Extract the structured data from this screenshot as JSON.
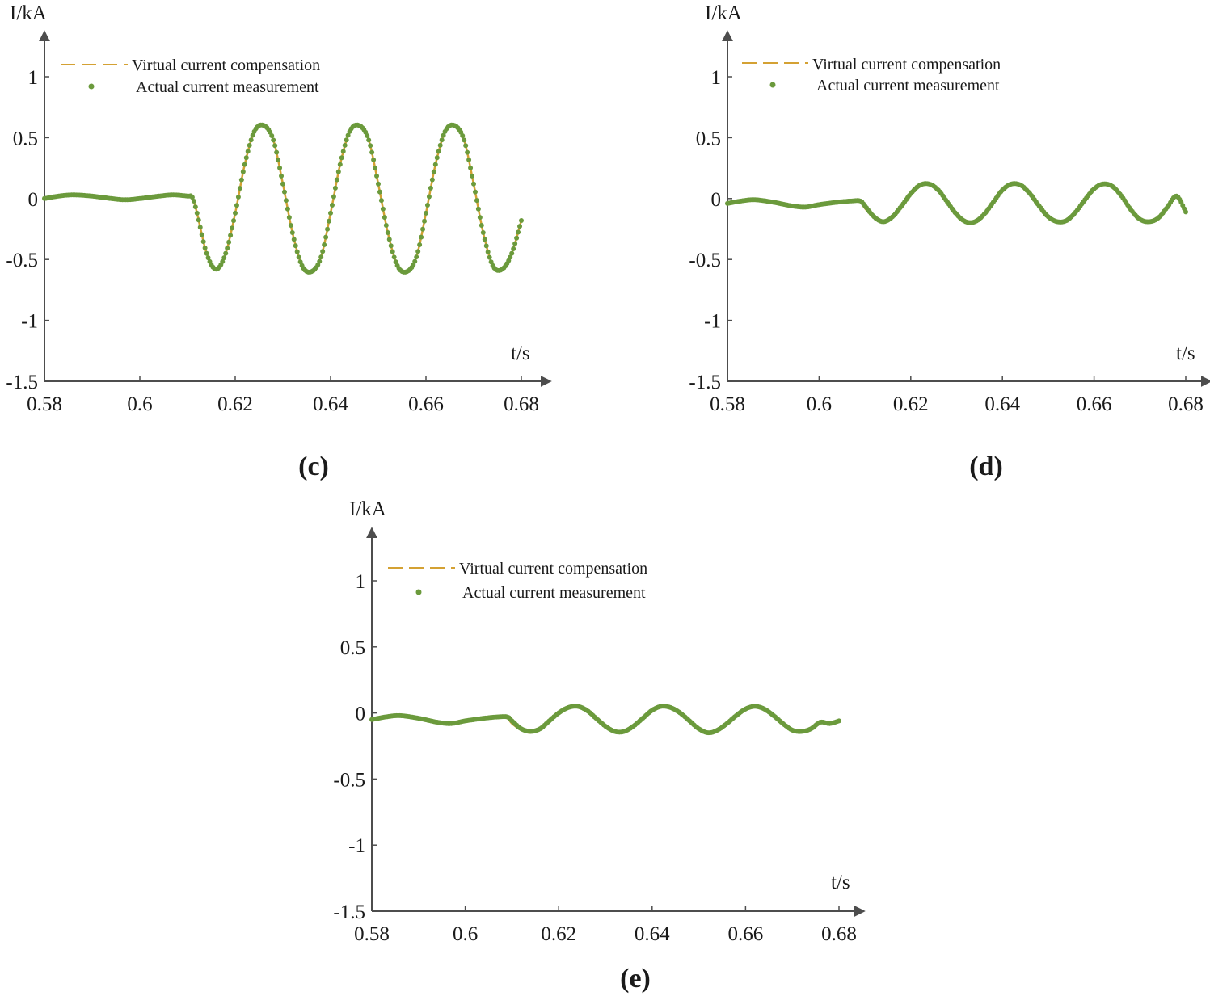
{
  "colors": {
    "virtual": "#d4a133",
    "actual": "#6b9a3c",
    "axis": "#4d4d4d"
  },
  "chart_data": [
    {
      "type": "line",
      "panel": "(c)",
      "ylabel": "I/kA",
      "xlabel": "t/s",
      "xlim": [
        0.58,
        0.68
      ],
      "ylim": [
        -1.5,
        1.25
      ],
      "xticks": [
        0.58,
        0.6,
        0.62,
        0.64,
        0.66,
        0.68
      ],
      "xtick_labels": [
        "0.58",
        "0.6",
        "0.62",
        "0.64",
        "0.66",
        "0.68"
      ],
      "yticks": [
        1,
        0.5,
        0,
        -0.5,
        -1,
        -1.5
      ],
      "ytick_labels": [
        "1",
        "0.5",
        "0",
        "-0.5",
        "-1",
        "-1.5"
      ],
      "legend": [
        "Virtual current compensation",
        "Actual current measurement"
      ],
      "legend_position": "top-left",
      "series": [
        {
          "name": "Virtual current compensation",
          "style": "dashed",
          "x": [
            0.58,
            0.583,
            0.586,
            0.59,
            0.594,
            0.597,
            0.6,
            0.604,
            0.607,
            0.61,
            0.611,
            0.612,
            0.614,
            0.616,
            0.618,
            0.62,
            0.622,
            0.624,
            0.626,
            0.628,
            0.63,
            0.632,
            0.634,
            0.636,
            0.638,
            0.64,
            0.642,
            0.644,
            0.646,
            0.648,
            0.65,
            0.652,
            0.654,
            0.656,
            0.658,
            0.66,
            0.662,
            0.664,
            0.666,
            0.668,
            0.67,
            0.672,
            0.674,
            0.676,
            0.678,
            0.68
          ],
          "y": [
            0.0,
            0.02,
            0.03,
            0.02,
            0.0,
            -0.01,
            0.0,
            0.02,
            0.03,
            0.02,
            0.01,
            -0.12,
            -0.45,
            -0.58,
            -0.45,
            -0.12,
            0.28,
            0.55,
            0.6,
            0.48,
            0.12,
            -0.28,
            -0.55,
            -0.6,
            -0.48,
            -0.12,
            0.28,
            0.55,
            0.6,
            0.48,
            0.12,
            -0.28,
            -0.55,
            -0.6,
            -0.48,
            -0.12,
            0.28,
            0.55,
            0.6,
            0.48,
            0.12,
            -0.28,
            -0.55,
            -0.58,
            -0.45,
            -0.18
          ]
        },
        {
          "name": "Actual current measurement",
          "style": "dots",
          "x": [
            0.58,
            0.583,
            0.586,
            0.59,
            0.594,
            0.597,
            0.6,
            0.604,
            0.607,
            0.61,
            0.611,
            0.612,
            0.614,
            0.616,
            0.618,
            0.62,
            0.622,
            0.624,
            0.626,
            0.628,
            0.63,
            0.632,
            0.634,
            0.636,
            0.638,
            0.64,
            0.642,
            0.644,
            0.646,
            0.648,
            0.65,
            0.652,
            0.654,
            0.656,
            0.658,
            0.66,
            0.662,
            0.664,
            0.666,
            0.668,
            0.67,
            0.672,
            0.674,
            0.676,
            0.678,
            0.68
          ],
          "y": [
            0.0,
            0.02,
            0.03,
            0.02,
            0.0,
            -0.01,
            0.0,
            0.02,
            0.03,
            0.02,
            0.01,
            -0.12,
            -0.45,
            -0.58,
            -0.45,
            -0.12,
            0.28,
            0.55,
            0.6,
            0.48,
            0.12,
            -0.28,
            -0.55,
            -0.6,
            -0.48,
            -0.12,
            0.28,
            0.55,
            0.6,
            0.48,
            0.12,
            -0.28,
            -0.55,
            -0.6,
            -0.48,
            -0.12,
            0.28,
            0.55,
            0.6,
            0.48,
            0.12,
            -0.28,
            -0.55,
            -0.58,
            -0.45,
            -0.18
          ]
        }
      ]
    },
    {
      "type": "line",
      "panel": "(d)",
      "ylabel": "I/kA",
      "xlabel": "t/s",
      "xlim": [
        0.58,
        0.68
      ],
      "ylim": [
        -1.5,
        1.25
      ],
      "xticks": [
        0.58,
        0.6,
        0.62,
        0.64,
        0.66,
        0.68
      ],
      "xtick_labels": [
        "0.58",
        "0.6",
        "0.62",
        "0.64",
        "0.66",
        "0.68"
      ],
      "yticks": [
        1,
        0.5,
        0,
        -0.5,
        -1,
        -1.5
      ],
      "ytick_labels": [
        "1",
        "0.5",
        "0",
        "-0.5",
        "-1",
        "-1.5"
      ],
      "legend": [
        "Virtual current compensation",
        "Actual current measurement"
      ],
      "legend_position": "top-left",
      "series": [
        {
          "name": "Virtual current compensation",
          "style": "dashed",
          "x": [
            0.58,
            0.583,
            0.586,
            0.59,
            0.594,
            0.597,
            0.6,
            0.604,
            0.607,
            0.609,
            0.61,
            0.612,
            0.614,
            0.616,
            0.618,
            0.62,
            0.622,
            0.624,
            0.626,
            0.628,
            0.63,
            0.632,
            0.634,
            0.636,
            0.638,
            0.64,
            0.642,
            0.644,
            0.646,
            0.648,
            0.65,
            0.652,
            0.654,
            0.656,
            0.658,
            0.66,
            0.662,
            0.664,
            0.666,
            0.668,
            0.67,
            0.672,
            0.674,
            0.676,
            0.678,
            0.68
          ],
          "y": [
            -0.04,
            -0.02,
            -0.01,
            -0.03,
            -0.06,
            -0.07,
            -0.05,
            -0.03,
            -0.02,
            -0.03,
            -0.08,
            -0.16,
            -0.19,
            -0.15,
            -0.06,
            0.04,
            0.11,
            0.12,
            0.07,
            -0.03,
            -0.13,
            -0.19,
            -0.19,
            -0.13,
            -0.03,
            0.07,
            0.12,
            0.11,
            0.04,
            -0.06,
            -0.15,
            -0.19,
            -0.18,
            -0.11,
            -0.01,
            0.08,
            0.12,
            0.1,
            0.02,
            -0.09,
            -0.17,
            -0.19,
            -0.16,
            -0.07,
            0.02,
            -0.11
          ]
        },
        {
          "name": "Actual current measurement",
          "style": "dots",
          "x": [
            0.58,
            0.583,
            0.586,
            0.59,
            0.594,
            0.597,
            0.6,
            0.604,
            0.607,
            0.609,
            0.61,
            0.612,
            0.614,
            0.616,
            0.618,
            0.62,
            0.622,
            0.624,
            0.626,
            0.628,
            0.63,
            0.632,
            0.634,
            0.636,
            0.638,
            0.64,
            0.642,
            0.644,
            0.646,
            0.648,
            0.65,
            0.652,
            0.654,
            0.656,
            0.658,
            0.66,
            0.662,
            0.664,
            0.666,
            0.668,
            0.67,
            0.672,
            0.674,
            0.676,
            0.678,
            0.68
          ],
          "y": [
            -0.04,
            -0.02,
            -0.01,
            -0.03,
            -0.06,
            -0.07,
            -0.05,
            -0.03,
            -0.02,
            -0.02,
            -0.06,
            -0.15,
            -0.19,
            -0.15,
            -0.06,
            0.04,
            0.11,
            0.12,
            0.07,
            -0.03,
            -0.13,
            -0.19,
            -0.19,
            -0.13,
            -0.03,
            0.07,
            0.12,
            0.11,
            0.04,
            -0.06,
            -0.15,
            -0.19,
            -0.18,
            -0.11,
            -0.01,
            0.08,
            0.12,
            0.1,
            0.02,
            -0.09,
            -0.17,
            -0.19,
            -0.16,
            -0.07,
            0.02,
            -0.11
          ]
        }
      ]
    },
    {
      "type": "line",
      "panel": "(e)",
      "ylabel": "I/kA",
      "xlabel": "t/s",
      "xlim": [
        0.58,
        0.68
      ],
      "ylim": [
        -1.5,
        1.25
      ],
      "xticks": [
        0.58,
        0.6,
        0.62,
        0.64,
        0.66,
        0.68
      ],
      "xtick_labels": [
        "0.58",
        "0.6",
        "0.62",
        "0.64",
        "0.66",
        "0.68"
      ],
      "yticks": [
        1,
        0.5,
        0,
        -0.5,
        -1,
        -1.5
      ],
      "ytick_labels": [
        "1",
        "0.5",
        "0",
        "-0.5",
        "-1",
        "-1.5"
      ],
      "legend": [
        "Virtual current compensation",
        "Actual current measurement"
      ],
      "legend_position": "top-left",
      "series": [
        {
          "name": "Virtual current compensation",
          "style": "dashed",
          "x": [
            0.58,
            0.583,
            0.586,
            0.59,
            0.594,
            0.597,
            0.6,
            0.604,
            0.607,
            0.609,
            0.61,
            0.612,
            0.614,
            0.616,
            0.618,
            0.62,
            0.622,
            0.624,
            0.626,
            0.628,
            0.63,
            0.632,
            0.634,
            0.636,
            0.638,
            0.64,
            0.642,
            0.644,
            0.646,
            0.648,
            0.65,
            0.652,
            0.654,
            0.656,
            0.658,
            0.66,
            0.662,
            0.664,
            0.666,
            0.668,
            0.67,
            0.672,
            0.674,
            0.676,
            0.678,
            0.68
          ],
          "y": [
            -0.05,
            -0.03,
            -0.02,
            -0.04,
            -0.07,
            -0.08,
            -0.06,
            -0.04,
            -0.03,
            -0.04,
            -0.08,
            -0.13,
            -0.15,
            -0.12,
            -0.06,
            0.0,
            0.04,
            0.05,
            0.02,
            -0.04,
            -0.1,
            -0.14,
            -0.14,
            -0.1,
            -0.04,
            0.02,
            0.05,
            0.04,
            0.0,
            -0.06,
            -0.12,
            -0.15,
            -0.13,
            -0.08,
            -0.02,
            0.03,
            0.05,
            0.03,
            -0.02,
            -0.08,
            -0.13,
            -0.14,
            -0.12,
            -0.07,
            -0.08,
            -0.06
          ]
        },
        {
          "name": "Actual current measurement",
          "style": "dots",
          "x": [
            0.58,
            0.583,
            0.586,
            0.59,
            0.594,
            0.597,
            0.6,
            0.604,
            0.607,
            0.609,
            0.61,
            0.612,
            0.614,
            0.616,
            0.618,
            0.62,
            0.622,
            0.624,
            0.626,
            0.628,
            0.63,
            0.632,
            0.634,
            0.636,
            0.638,
            0.64,
            0.642,
            0.644,
            0.646,
            0.648,
            0.65,
            0.652,
            0.654,
            0.656,
            0.658,
            0.66,
            0.662,
            0.664,
            0.666,
            0.668,
            0.67,
            0.672,
            0.674,
            0.676,
            0.678,
            0.68
          ],
          "y": [
            -0.05,
            -0.03,
            -0.02,
            -0.04,
            -0.07,
            -0.08,
            -0.06,
            -0.04,
            -0.03,
            -0.03,
            -0.06,
            -0.12,
            -0.14,
            -0.12,
            -0.06,
            0.0,
            0.04,
            0.05,
            0.02,
            -0.04,
            -0.1,
            -0.14,
            -0.14,
            -0.1,
            -0.04,
            0.02,
            0.05,
            0.04,
            0.0,
            -0.06,
            -0.12,
            -0.15,
            -0.13,
            -0.08,
            -0.02,
            0.03,
            0.05,
            0.03,
            -0.02,
            -0.08,
            -0.13,
            -0.14,
            -0.12,
            -0.07,
            -0.08,
            -0.06
          ]
        }
      ]
    }
  ]
}
